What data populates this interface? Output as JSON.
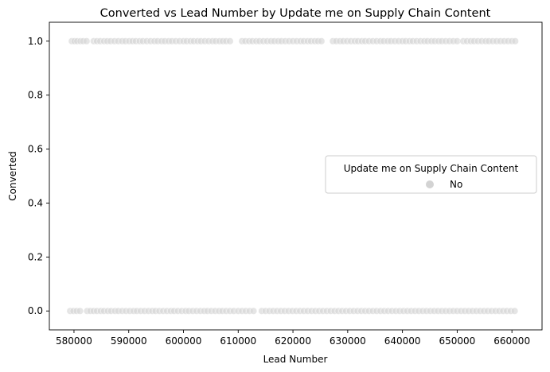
{
  "chart_data": {
    "type": "scatter",
    "title": "Converted vs Lead Number by Update me on Supply Chain Content",
    "xlabel": "Lead Number",
    "ylabel": "Converted",
    "xlim": [
      575500,
      665500
    ],
    "ylim": [
      -0.07,
      1.07
    ],
    "x_ticks": [
      580000,
      590000,
      600000,
      610000,
      620000,
      630000,
      640000,
      650000,
      660000
    ],
    "x_tick_labels": [
      "580000",
      "590000",
      "600000",
      "610000",
      "620000",
      "630000",
      "640000",
      "650000",
      "660000"
    ],
    "y_ticks": [
      0.0,
      0.2,
      0.4,
      0.6,
      0.8,
      1.0
    ],
    "y_tick_labels": [
      "0.0",
      "0.2",
      "0.4",
      "0.6",
      "0.8",
      "1.0"
    ],
    "grid": false,
    "legend": {
      "title": "Update me on Supply Chain Content",
      "placement": "center-right",
      "entries": [
        {
          "label": "No",
          "color": "#d3d3d3"
        }
      ]
    },
    "series": [
      {
        "name": "No",
        "color": "#d3d3d3",
        "alpha": 0.6,
        "x_range": [
          579500,
          660700
        ],
        "y_levels": [
          0,
          1
        ],
        "points": [
          {
            "y": 1,
            "x": [
              579600,
              580100,
              580600,
              581200,
              581700,
              582300,
              583600,
              584200,
              584800,
              585500,
              586100,
              586700,
              587400,
              588100,
              588800,
              589400,
              590100,
              590700,
              591300,
              592000,
              592600,
              593300,
              594000,
              594700,
              595300,
              596000,
              596600,
              597300,
              597900,
              598600,
              599300,
              600000,
              600600,
              601300,
              601900,
              602600,
              603200,
              603900,
              604600,
              605300,
              605900,
              606600,
              607200,
              607800,
              608500,
              610700,
              611300,
              612000,
              612600,
              613300,
              613900,
              614600,
              615300,
              616000,
              616600,
              617300,
              617900,
              618600,
              619300,
              620000,
              620700,
              621400,
              622000,
              622700,
              623300,
              624000,
              624600,
              625200,
              627300,
              627900,
              628600,
              629200,
              629900,
              630600,
              631300,
              631900,
              632600,
              633200,
              633900,
              634600,
              635300,
              636000,
              636600,
              637300,
              637900,
              638600,
              639300,
              640000,
              640600,
              641300,
              641900,
              642600,
              643300,
              644000,
              644600,
              645300,
              645900,
              646600,
              647200,
              647900,
              648600,
              649300,
              650000,
              651100,
              651800,
              652500,
              653100,
              653800,
              654500,
              655200,
              655800,
              656500,
              657200,
              657900,
              658600,
              659300,
              660000,
              660600
            ]
          },
          {
            "y": 0,
            "x": [
              579300,
              579900,
              580500,
              581100,
              582400,
              583000,
              583600,
              584200,
              584900,
              585500,
              586200,
              586800,
              587500,
              588100,
              588800,
              589500,
              590200,
              590900,
              591500,
              592200,
              592900,
              593600,
              594300,
              594900,
              595600,
              596300,
              597000,
              597700,
              598300,
              599000,
              599700,
              600400,
              601000,
              601700,
              602400,
              603100,
              603800,
              604400,
              605100,
              605800,
              606500,
              607100,
              607800,
              608500,
              609200,
              610000,
              610700,
              611400,
              612100,
              612800,
              614300,
              615000,
              615700,
              616400,
              617100,
              617800,
              618500,
              619200,
              619900,
              620600,
              621300,
              622000,
              622700,
              623400,
              624100,
              624800,
              625500,
              626200,
              626900,
              627600,
              628300,
              629000,
              629700,
              630400,
              631100,
              631800,
              632500,
              633200,
              633900,
              634600,
              635300,
              636000,
              636700,
              637400,
              638100,
              638800,
              639500,
              640200,
              640900,
              641600,
              642300,
              643000,
              643700,
              644400,
              645100,
              645800,
              646500,
              647200,
              647900,
              648600,
              649300,
              650000,
              650700,
              651400,
              652100,
              652800,
              653500,
              654200,
              654900,
              655600,
              656300,
              657000,
              657700,
              658400,
              659100,
              659800,
              660500
            ]
          }
        ]
      }
    ]
  }
}
